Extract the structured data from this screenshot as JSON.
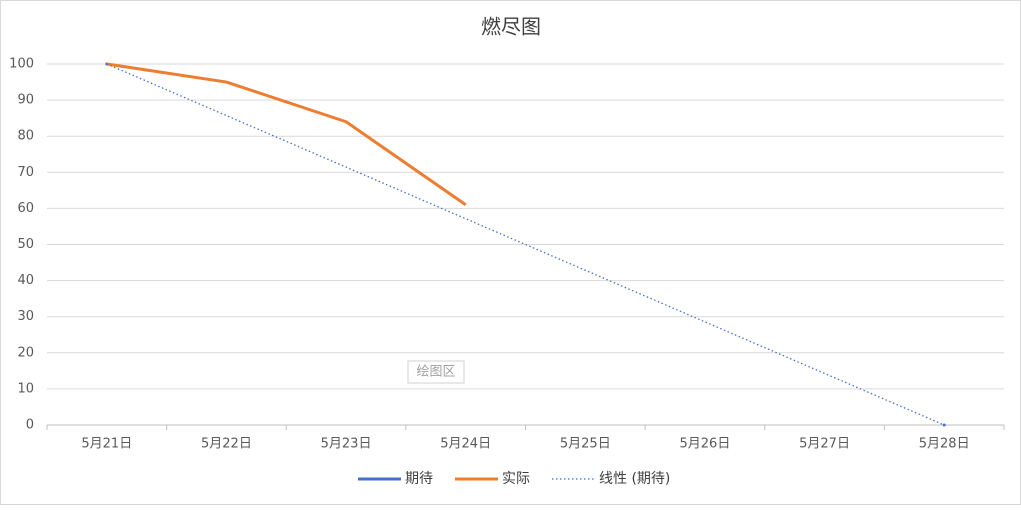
{
  "chart_data": {
    "type": "line",
    "title": "燃尽图",
    "categories": [
      "5月21日",
      "5月22日",
      "5月23日",
      "5月24日",
      "5月25日",
      "5月26日",
      "5月27日",
      "5月28日"
    ],
    "series": [
      {
        "name": "期待",
        "color": "#4472c4",
        "values": [
          100,
          null,
          null,
          null,
          null,
          null,
          null,
          0
        ]
      },
      {
        "name": "实际",
        "color": "#ed7d31",
        "values": [
          100,
          95,
          84,
          61,
          null,
          null,
          null,
          null
        ]
      },
      {
        "name": "线性 (期待)",
        "color": "#4472c4",
        "dash": true,
        "values": [
          100,
          85.71,
          71.43,
          57.14,
          42.86,
          28.57,
          14.29,
          0
        ]
      }
    ],
    "ylim": [
      0,
      100
    ],
    "yticks": [
      0,
      10,
      20,
      30,
      40,
      50,
      60,
      70,
      80,
      90,
      100
    ],
    "grid": true,
    "legend": "bottom",
    "annotation": "绘图区"
  }
}
